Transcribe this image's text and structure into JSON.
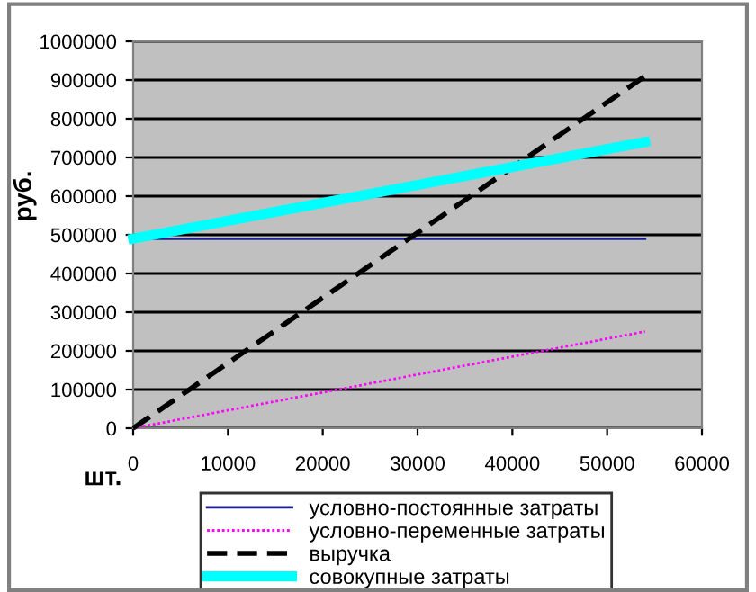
{
  "chart_data": {
    "type": "line",
    "xlabel": "шт.",
    "ylabel": "руб.",
    "x": [
      0,
      54000
    ],
    "series": [
      {
        "name": "условно-постоянные затраты",
        "color": "#1f1f8f",
        "values": [
          490000,
          490000
        ],
        "line_style": "solid"
      },
      {
        "name": "условно-переменные затраты",
        "color": "#ff00ff",
        "values": [
          0,
          250000
        ],
        "line_style": "dotted"
      },
      {
        "name": "выручка",
        "color": "#000000",
        "values": [
          0,
          910000
        ],
        "line_style": "dashed"
      },
      {
        "name": "совокупные затраты",
        "color": "#00ffff",
        "values": [
          490000,
          740000
        ],
        "line_style": "solid"
      }
    ],
    "xlim": [
      0,
      60000
    ],
    "xticks": [
      0,
      10000,
      20000,
      30000,
      40000,
      50000,
      60000
    ],
    "ylim": [
      0,
      1000000
    ],
    "yticks": [
      0,
      100000,
      200000,
      300000,
      400000,
      500000,
      600000,
      700000,
      800000,
      900000,
      1000000
    ],
    "grid": "y",
    "legend": "bottom",
    "marker": "none"
  }
}
